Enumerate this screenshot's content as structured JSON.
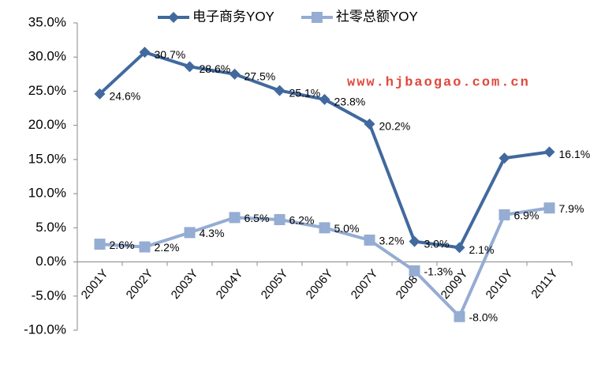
{
  "chart_data": {
    "type": "line",
    "categories": [
      "2001Y",
      "2002Y",
      "2003Y",
      "2004Y",
      "2005Y",
      "2006Y",
      "2007Y",
      "2008Y",
      "2009Y",
      "2010Y",
      "2011Y"
    ],
    "series": [
      {
        "name": "电子商务YOY",
        "color": "#41699e",
        "marker": "diamond",
        "values": [
          24.6,
          30.7,
          28.6,
          27.5,
          25.1,
          23.8,
          20.2,
          3.0,
          2.1,
          15.2,
          16.1
        ],
        "value_labels": [
          "24.6%",
          "30.7%",
          "28.6%",
          "27.5%",
          "25.1%",
          "23.8%",
          "20.2%",
          "3.0%",
          "2.1%",
          null,
          "16.1%"
        ]
      },
      {
        "name": "社零总额YOY",
        "color": "#95acd3",
        "marker": "square",
        "values": [
          2.6,
          2.2,
          4.3,
          6.5,
          6.2,
          5.0,
          3.2,
          -1.3,
          -8.0,
          6.9,
          7.9
        ],
        "value_labels": [
          "2.6%",
          "2.2%",
          "4.3%",
          "6.5%",
          "6.2%",
          "5.0%",
          "3.2%",
          "-1.3%",
          "-8.0%",
          "6.9%",
          "7.9%"
        ]
      }
    ],
    "ylim": [
      -10,
      35
    ],
    "yticks": [
      {
        "value": -10,
        "label": "-10.0%"
      },
      {
        "value": -5,
        "label": "-5.0%"
      },
      {
        "value": 0,
        "label": "0.0%"
      },
      {
        "value": 5,
        "label": "5.0%"
      },
      {
        "value": 10,
        "label": "10.0%"
      },
      {
        "value": 15,
        "label": "15.0%"
      },
      {
        "value": 20,
        "label": "20.0%"
      },
      {
        "value": 25,
        "label": "25.0%"
      },
      {
        "value": 30,
        "label": "30.0%"
      },
      {
        "value": 35,
        "label": "35.0%"
      }
    ],
    "annotation": "www.hjbaogao.com.cn",
    "legend": "top"
  }
}
